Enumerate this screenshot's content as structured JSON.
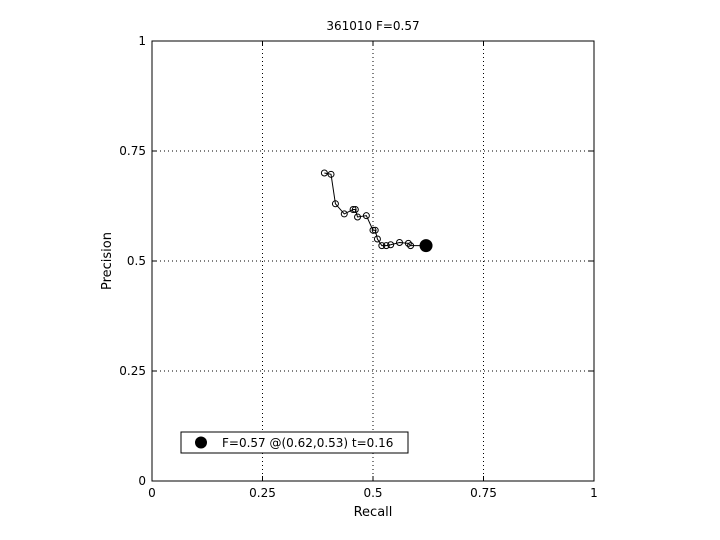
{
  "chart_data": {
    "type": "line",
    "title": "361010 F=0.57",
    "xlabel": "Recall",
    "ylabel": "Precision",
    "xlim": [
      0,
      1
    ],
    "ylim": [
      0,
      1
    ],
    "xticks": [
      0,
      0.25,
      0.5,
      0.75,
      1
    ],
    "xtick_labels": [
      "0",
      "0.25",
      "0.5",
      "0.75",
      "1"
    ],
    "yticks": [
      0,
      0.25,
      0.5,
      0.75,
      1
    ],
    "ytick_labels": [
      "0",
      "0.25",
      "0.5",
      "0.75",
      "1"
    ],
    "grid": true,
    "grid_style": "dotted",
    "legend_position": "bottom-left",
    "series": [
      {
        "marker": "open-circle",
        "color": "#000000",
        "x": [
          0.39,
          0.405,
          0.415,
          0.435,
          0.455,
          0.46,
          0.465,
          0.485,
          0.5,
          0.505,
          0.51,
          0.52,
          0.53,
          0.54,
          0.56,
          0.58,
          0.585,
          0.62
        ],
        "y": [
          0.7,
          0.697,
          0.63,
          0.607,
          0.617,
          0.617,
          0.6,
          0.603,
          0.57,
          0.57,
          0.55,
          0.535,
          0.535,
          0.537,
          0.542,
          0.54,
          0.535,
          0.535
        ]
      }
    ],
    "highlight_point": {
      "x": 0.62,
      "y": 0.535,
      "marker": "filled-circle",
      "label": "F=0.57 @(0.62,0.53) t=0.16"
    }
  }
}
